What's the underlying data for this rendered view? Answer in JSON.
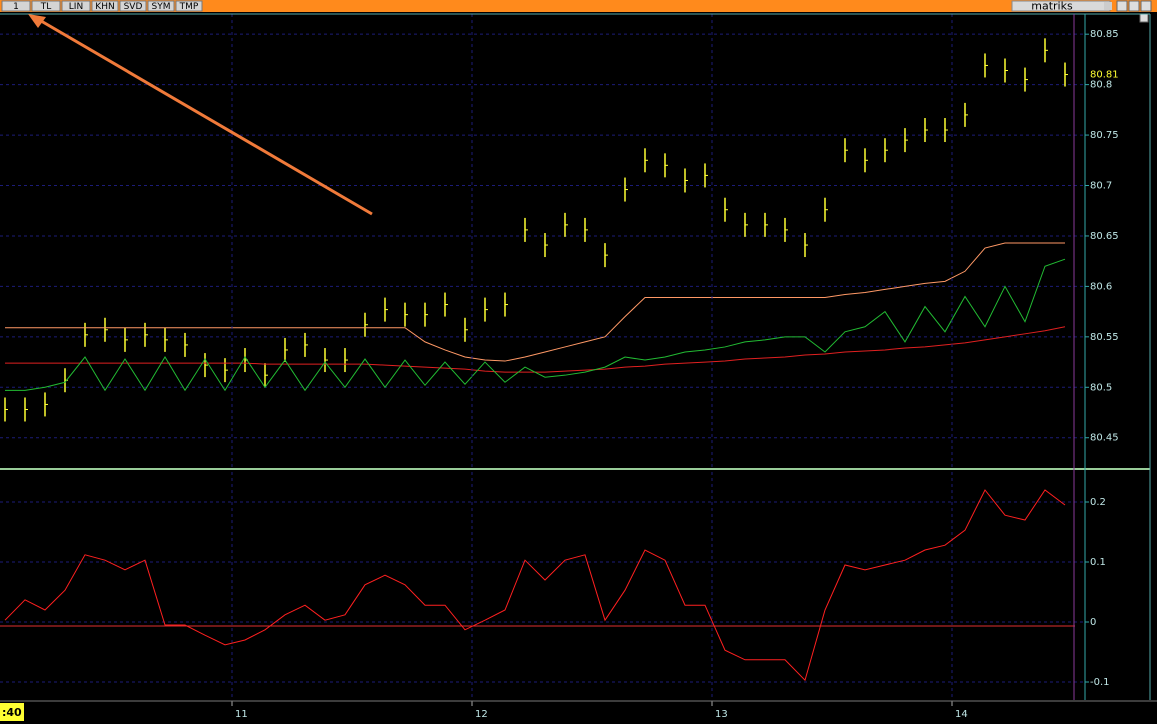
{
  "toolbar": {
    "buttons": [
      "1",
      "TL",
      "LIN",
      "KHN",
      "SVD",
      "SYM",
      "TMP"
    ],
    "brand": "matriks",
    "time_label": ":40"
  },
  "chart_data": [
    {
      "type": "line",
      "panel": "price",
      "x": [
        0,
        1,
        2,
        3,
        4,
        5,
        6,
        7,
        8,
        9,
        10,
        11,
        12,
        13,
        14,
        15,
        16,
        17,
        18,
        19,
        20,
        21,
        22,
        23,
        24,
        25,
        26,
        27,
        28,
        29,
        30,
        31,
        32,
        33,
        34,
        35,
        36,
        37,
        38,
        39,
        40,
        41,
        42,
        43,
        44,
        45,
        46,
        47,
        48,
        49,
        50,
        51,
        52,
        53
      ],
      "xlim": [
        -0.25,
        53.5
      ],
      "ylim": [
        80.42,
        80.87
      ],
      "yticks": [
        80.45,
        80.5,
        80.55,
        80.6,
        80.65,
        80.7,
        80.75,
        80.8,
        80.85
      ],
      "grid": true,
      "series": [
        {
          "name": "price",
          "style": "bars",
          "color": "#ffff33",
          "last_label": "80.81",
          "values": [
            80.478,
            80.478,
            80.483,
            80.507,
            80.552,
            80.557,
            80.547,
            80.552,
            80.547,
            80.542,
            80.522,
            80.517,
            80.527,
            80.512,
            80.537,
            80.542,
            80.527,
            80.527,
            80.562,
            80.577,
            80.572,
            80.572,
            80.582,
            80.557,
            80.577,
            80.582,
            80.656,
            80.641,
            80.661,
            80.656,
            80.631,
            80.696,
            80.725,
            80.72,
            80.705,
            80.71,
            80.676,
            80.661,
            80.661,
            80.656,
            80.641,
            80.676,
            80.735,
            80.725,
            80.735,
            80.745,
            80.755,
            80.755,
            80.77,
            80.819,
            80.814,
            80.805,
            80.834,
            80.81
          ]
        },
        {
          "name": "upper",
          "style": "line",
          "color": "#ff9966",
          "values": [
            80.559,
            80.559,
            80.559,
            80.559,
            80.559,
            80.559,
            80.559,
            80.559,
            80.559,
            80.559,
            80.559,
            80.559,
            80.559,
            80.559,
            80.559,
            80.559,
            80.559,
            80.559,
            80.559,
            80.559,
            80.559,
            80.545,
            80.537,
            80.53,
            80.527,
            80.526,
            80.53,
            80.535,
            80.54,
            80.545,
            80.55,
            80.57,
            80.589,
            80.589,
            80.589,
            80.589,
            80.589,
            80.589,
            80.589,
            80.589,
            80.589,
            80.589,
            80.592,
            80.594,
            80.597,
            80.6,
            80.603,
            80.605,
            80.615,
            80.638,
            80.643,
            80.643,
            80.643,
            80.643
          ]
        },
        {
          "name": "average",
          "style": "line",
          "color": "#e02020",
          "values": [
            80.524,
            80.524,
            80.524,
            80.524,
            80.524,
            80.524,
            80.524,
            80.524,
            80.524,
            80.524,
            80.524,
            80.524,
            80.524,
            80.523,
            80.523,
            80.523,
            80.523,
            80.523,
            80.523,
            80.522,
            80.521,
            80.52,
            80.519,
            80.518,
            80.516,
            80.515,
            80.515,
            80.515,
            80.516,
            80.517,
            80.518,
            80.52,
            80.521,
            80.523,
            80.524,
            80.525,
            80.526,
            80.528,
            80.529,
            80.53,
            80.532,
            80.533,
            80.535,
            80.536,
            80.537,
            80.539,
            80.54,
            80.542,
            80.544,
            80.547,
            80.55,
            80.553,
            80.556,
            80.56
          ]
        },
        {
          "name": "signal",
          "style": "line",
          "color": "#22bb33",
          "values": [
            80.497,
            80.497,
            80.5,
            80.505,
            80.53,
            80.497,
            80.528,
            80.497,
            80.53,
            80.497,
            80.528,
            80.497,
            80.53,
            80.5,
            80.527,
            80.497,
            80.525,
            80.5,
            80.528,
            80.5,
            80.527,
            80.502,
            80.525,
            80.503,
            80.525,
            80.505,
            80.52,
            80.51,
            80.512,
            80.515,
            80.52,
            80.53,
            80.527,
            80.53,
            80.535,
            80.537,
            80.54,
            80.545,
            80.547,
            80.55,
            80.55,
            80.535,
            80.555,
            80.56,
            80.575,
            80.545,
            80.58,
            80.555,
            80.59,
            80.56,
            80.6,
            80.565,
            80.62,
            80.627
          ]
        }
      ]
    },
    {
      "type": "line",
      "panel": "oscillator",
      "x": [
        0,
        1,
        2,
        3,
        4,
        5,
        6,
        7,
        8,
        9,
        10,
        11,
        12,
        13,
        14,
        15,
        16,
        17,
        18,
        19,
        20,
        21,
        22,
        23,
        24,
        25,
        26,
        27,
        28,
        29,
        30,
        31,
        32,
        33,
        34,
        35,
        36,
        37,
        38,
        39,
        40,
        41,
        42,
        43,
        44,
        45,
        46,
        47,
        48,
        49,
        50,
        51,
        52,
        53
      ],
      "xlim": [
        -0.25,
        53.5
      ],
      "xticks": [
        {
          "value": 11.35,
          "label": "11"
        },
        {
          "value": 23.35,
          "label": "12"
        },
        {
          "value": 35.35,
          "label": "13"
        },
        {
          "value": 47.35,
          "label": "14"
        }
      ],
      "ylim": [
        -0.13,
        0.25
      ],
      "yticks": [
        -0.1,
        0,
        0.1,
        0.2
      ],
      "reference": 0,
      "grid": true,
      "series": [
        {
          "name": "oscillator",
          "style": "line",
          "color": "#ff2020",
          "values": [
            0.003,
            0.037,
            0.02,
            0.053,
            0.112,
            0.103,
            0.087,
            0.103,
            -0.005,
            -0.005,
            -0.022,
            -0.038,
            -0.03,
            -0.013,
            0.012,
            0.028,
            0.003,
            0.012,
            0.062,
            0.078,
            0.062,
            0.028,
            0.028,
            -0.013,
            0.003,
            0.02,
            0.103,
            0.07,
            0.103,
            0.112,
            0.003,
            0.053,
            0.12,
            0.103,
            0.028,
            0.028,
            -0.047,
            -0.063,
            -0.063,
            -0.063,
            -0.097,
            0.02,
            0.095,
            0.087,
            0.095,
            0.103,
            0.12,
            0.128,
            0.153,
            0.22,
            0.178,
            0.17,
            0.22,
            0.195
          ]
        }
      ]
    }
  ]
}
